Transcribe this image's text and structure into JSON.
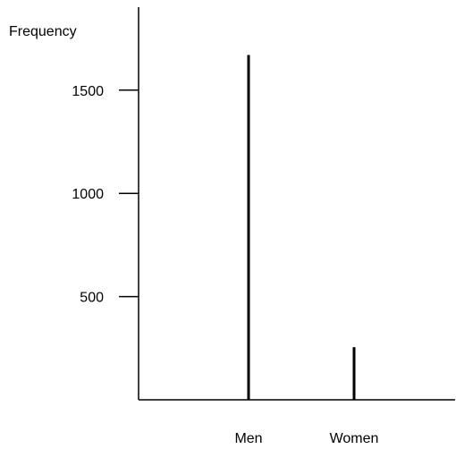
{
  "chart_data": {
    "type": "bar",
    "title": "",
    "xlabel": "",
    "ylabel": "Frequency",
    "categories": [
      "Men",
      "Women"
    ],
    "values": [
      1670,
      255
    ],
    "ylim": [
      0,
      1850
    ],
    "yticks": [
      500,
      1000,
      1500
    ],
    "ytick_labels": [
      "500",
      "1000",
      "1500"
    ],
    "grid": false,
    "legend": "none",
    "colors": {
      "bar": "#000000",
      "axis": "#000000"
    }
  }
}
